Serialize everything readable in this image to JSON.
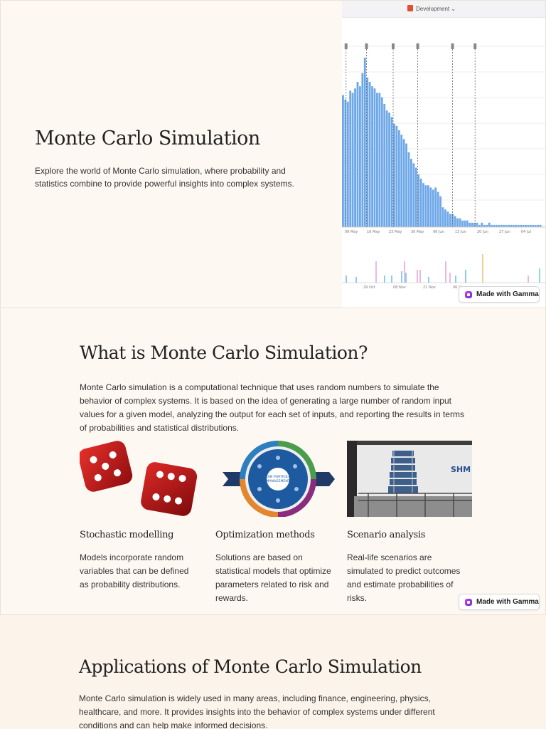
{
  "slide1": {
    "title": "Monte Carlo Simulation",
    "description": "Explore the world of Monte Carlo simulation, where probability and statistics combine to provide powerful insights into complex systems.",
    "image": {
      "environment_label": "Development",
      "main_chart": {
        "type": "bar",
        "x_tick_labels": [
          "09 May",
          "16 May",
          "23 May",
          "30 May",
          "06 Jun",
          "13 Jun",
          "20 Jun",
          "27 Jun",
          "04 Jul"
        ],
        "values": [
          60,
          58,
          57,
          62,
          61,
          63,
          66,
          64,
          70,
          77,
          68,
          66,
          64,
          63,
          61,
          61,
          59,
          56,
          53,
          52,
          50,
          47,
          46,
          44,
          42,
          40,
          38,
          34,
          31,
          29,
          27,
          24,
          22,
          20,
          19,
          19,
          18,
          17,
          18,
          16,
          14,
          9,
          8,
          7,
          6,
          6,
          5,
          4,
          4,
          3,
          3,
          3,
          2,
          2,
          2,
          2,
          1,
          2,
          1,
          1,
          2,
          1,
          1,
          1,
          1,
          1,
          1,
          1,
          1,
          1,
          1,
          1,
          1,
          1,
          1,
          1,
          1,
          1,
          1,
          1,
          1,
          1,
          0,
          0
        ],
        "color": "#6ea8e8"
      },
      "secondary_chart": {
        "x_tick_labels": [
          "29 Oct",
          "08 Nov",
          "21 Nov",
          "06 Dec"
        ],
        "colors": [
          "#e59ad3",
          "#5ab6e6",
          "#f0b86a",
          "#5fd0c3"
        ]
      }
    },
    "badge": "Made with Gamma"
  },
  "slide2": {
    "title": "What is Monte Carlo Simulation?",
    "description": "Monte Carlo simulation is a computational technique that uses random numbers to simulate the behavior of complex systems. It is based on the idea of generating a large number of random input values for a given model, analyzing the output for each set of inputs, and reporting the results in terms of probabilities and statistical distributions.",
    "cards": [
      {
        "title": "Stochastic modelling",
        "text": "Models incorporate random variables that can be defined as probability distributions.",
        "image": "red-dice"
      },
      {
        "title": "Optimization methods",
        "text": "Solutions are based on statistical models that optimize parameters related to risk and rewards.",
        "image": "lean-portfolio-wheel",
        "image_text": "LEAN PORTFOLIO MANAGEMENT"
      },
      {
        "title": "Scenario analysis",
        "text": "Real-life scenarios are simulated to predict outcomes and estimate probabilities of risks.",
        "image": "shake-table-building",
        "image_text": "SHM"
      }
    ],
    "badge": "Made with Gamma"
  },
  "slide3": {
    "title": "Applications of Monte Carlo Simulation",
    "description": "Monte Carlo simulation is widely used in many areas, including finance, engineering, physics, healthcare, and more. It provides insights into the behavior of complex systems under different conditions and can help make informed decisions."
  }
}
